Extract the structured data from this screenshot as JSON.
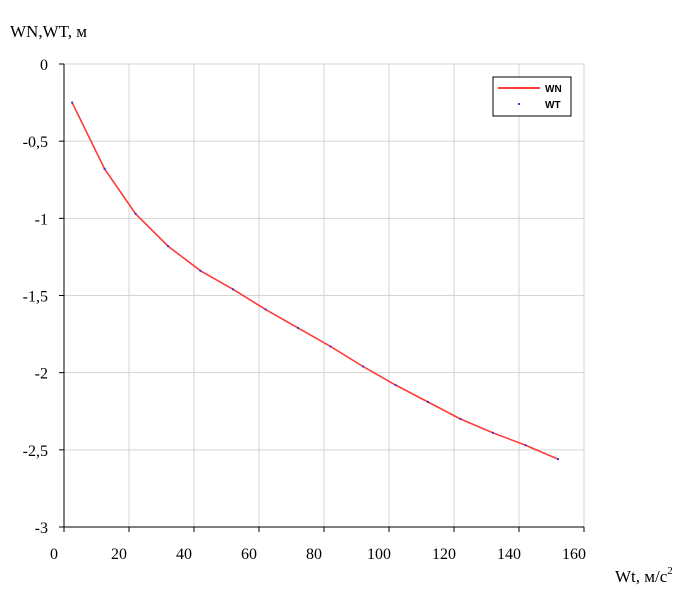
{
  "chart_data": {
    "type": "line",
    "ylabel": "WN,WT, м",
    "xlabel_text": "Wt, м/с",
    "xlabel_sup": "2",
    "xlim": [
      0,
      160
    ],
    "ylim": [
      -3,
      0
    ],
    "xticks": [
      0,
      20,
      40,
      60,
      80,
      100,
      120,
      140,
      160
    ],
    "xtick_labels": [
      "0",
      "20",
      "40",
      "60",
      "80",
      "100",
      "120",
      "140",
      "160"
    ],
    "yticks": [
      0,
      -0.5,
      -1,
      -1.5,
      -2,
      -2.5,
      -3
    ],
    "ytick_labels": [
      "0",
      "-0,5",
      "-1",
      "-1,5",
      "-2",
      "-2,5",
      "-3"
    ],
    "grid": true,
    "legend_position": "top-right",
    "series": [
      {
        "name": "WN",
        "style": "line",
        "color": "#ff3b3b",
        "x": [
          2.5,
          12.5,
          22,
          32,
          42,
          52,
          62,
          72,
          82,
          92,
          102,
          112,
          122,
          132,
          142,
          152
        ],
        "y": [
          -0.25,
          -0.68,
          -0.97,
          -1.18,
          -1.34,
          -1.46,
          -1.59,
          -1.71,
          -1.83,
          -1.96,
          -2.08,
          -2.19,
          -2.3,
          -2.39,
          -2.47,
          -2.56
        ]
      },
      {
        "name": "WT",
        "style": "markers",
        "color": "#3b3bd9",
        "x": [
          2.5,
          12.5,
          22,
          32,
          42,
          52,
          62,
          72,
          82,
          92,
          102,
          112,
          122,
          132,
          142,
          152
        ],
        "y": [
          -0.25,
          -0.68,
          -0.97,
          -1.18,
          -1.34,
          -1.46,
          -1.59,
          -1.71,
          -1.83,
          -1.96,
          -2.08,
          -2.19,
          -2.3,
          -2.39,
          -2.47,
          -2.56
        ]
      }
    ]
  }
}
